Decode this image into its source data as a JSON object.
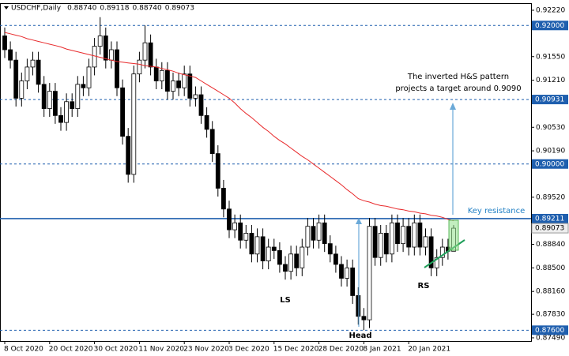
{
  "chart_data": {
    "type": "candlestick",
    "title": "USDCHF,Daily",
    "header_values": [
      {
        "value": 0.8874,
        "label": "0.88740"
      },
      {
        "value": 0.89118,
        "label": "0.89118"
      },
      {
        "value": 0.8874,
        "label": "0.88740"
      },
      {
        "value": 0.89073,
        "label": "0.89073"
      }
    ],
    "categories": [
      "8 Oct 2020",
      null,
      null,
      null,
      null,
      null,
      null,
      null,
      "20 Oct 2020",
      null,
      null,
      null,
      null,
      null,
      null,
      null,
      "30 Oct 2020",
      null,
      null,
      null,
      null,
      null,
      null,
      null,
      "11 Nov 2020",
      null,
      null,
      null,
      null,
      null,
      null,
      null,
      "23 Nov 2020",
      null,
      null,
      null,
      null,
      null,
      null,
      null,
      "3 Dec 2020",
      null,
      null,
      null,
      null,
      null,
      null,
      null,
      "15 Dec 2020",
      null,
      null,
      null,
      null,
      null,
      null,
      null,
      "28 Dec 2020",
      null,
      null,
      null,
      null,
      null,
      null,
      null,
      "8 Jan 2021",
      null,
      null,
      null,
      null,
      null,
      null,
      null,
      "20 Jan 2021",
      null,
      null,
      null,
      null,
      null,
      null,
      null,
      null
    ],
    "open": [
      0.9185,
      0.9165,
      0.915,
      0.9095,
      0.912,
      0.914,
      0.915,
      0.9115,
      0.908,
      0.9105,
      0.907,
      0.906,
      0.909,
      0.908,
      0.9115,
      0.911,
      0.914,
      0.917,
      0.9185,
      0.915,
      0.9165,
      0.911,
      0.904,
      0.8985,
      0.913,
      0.915,
      0.9175,
      0.914,
      0.912,
      0.9135,
      0.9105,
      0.912,
      0.911,
      0.913,
      0.9095,
      0.91,
      0.907,
      0.905,
      0.9015,
      0.8965,
      0.8935,
      0.8905,
      0.8915,
      0.889,
      0.89,
      0.887,
      0.8895,
      0.886,
      0.888,
      0.8875,
      0.8855,
      0.8845,
      0.887,
      0.885,
      0.888,
      0.891,
      0.889,
      0.8915,
      0.8885,
      0.887,
      0.8855,
      0.8835,
      0.885,
      0.881,
      0.878,
      0.8775,
      0.891,
      0.8865,
      0.89,
      0.887,
      0.8915,
      0.8885,
      0.891,
      0.888,
      0.8915,
      0.888,
      0.8895,
      0.885,
      0.8865,
      0.888,
      0.8874
    ],
    "high": [
      0.9197,
      0.9177,
      0.9162,
      0.9132,
      0.9152,
      0.9162,
      0.9162,
      0.9127,
      0.9117,
      0.9117,
      0.9082,
      0.9102,
      0.9102,
      0.9127,
      0.9127,
      0.9152,
      0.9182,
      0.9212,
      0.9197,
      0.9177,
      0.9177,
      0.9122,
      0.9052,
      0.9142,
      0.9162,
      0.92,
      0.9187,
      0.9152,
      0.9147,
      0.9147,
      0.9132,
      0.9132,
      0.9142,
      0.9142,
      0.9112,
      0.9112,
      0.9082,
      0.9062,
      0.9027,
      0.8977,
      0.8947,
      0.8927,
      0.8927,
      0.8912,
      0.8912,
      0.8907,
      0.8907,
      0.8892,
      0.8892,
      0.8887,
      0.8867,
      0.8882,
      0.8882,
      0.8892,
      0.8922,
      0.8922,
      0.8927,
      0.8927,
      0.8897,
      0.8882,
      0.8867,
      0.8862,
      0.8862,
      0.8822,
      0.8792,
      0.8922,
      0.8922,
      0.8912,
      0.8912,
      0.8927,
      0.8927,
      0.8922,
      0.8922,
      0.8927,
      0.8927,
      0.8907,
      0.8907,
      0.8877,
      0.8892,
      0.8892,
      0.89118
    ],
    "low": [
      0.9153,
      0.9138,
      0.9083,
      0.9083,
      0.9108,
      0.9128,
      0.9103,
      0.9068,
      0.9068,
      0.9058,
      0.9048,
      0.9048,
      0.9068,
      0.9068,
      0.9098,
      0.9098,
      0.9128,
      0.9158,
      0.9138,
      0.9138,
      0.9098,
      0.9028,
      0.8973,
      0.8973,
      0.9118,
      0.9138,
      0.9128,
      0.9108,
      0.9108,
      0.9093,
      0.9093,
      0.9098,
      0.9098,
      0.9083,
      0.9083,
      0.9058,
      0.9038,
      0.9003,
      0.8953,
      0.8923,
      0.8893,
      0.8893,
      0.8878,
      0.8878,
      0.8858,
      0.8858,
      0.8848,
      0.8848,
      0.8863,
      0.8843,
      0.8833,
      0.8833,
      0.8838,
      0.8838,
      0.8868,
      0.8878,
      0.8878,
      0.8873,
      0.8858,
      0.8843,
      0.8823,
      0.8823,
      0.8798,
      0.8768,
      0.876,
      0.8763,
      0.8853,
      0.8853,
      0.8858,
      0.8858,
      0.8873,
      0.8873,
      0.8868,
      0.8868,
      0.8868,
      0.8868,
      0.8838,
      0.8838,
      0.8853,
      0.8862,
      0.8874
    ],
    "close": [
      0.9165,
      0.915,
      0.9095,
      0.912,
      0.914,
      0.915,
      0.9115,
      0.908,
      0.9105,
      0.907,
      0.906,
      0.909,
      0.908,
      0.9115,
      0.911,
      0.914,
      0.917,
      0.9185,
      0.915,
      0.9165,
      0.911,
      0.904,
      0.8985,
      0.913,
      0.915,
      0.9175,
      0.914,
      0.912,
      0.9135,
      0.9105,
      0.912,
      0.911,
      0.913,
      0.9095,
      0.91,
      0.907,
      0.905,
      0.9015,
      0.8965,
      0.8935,
      0.8905,
      0.8915,
      0.889,
      0.89,
      0.887,
      0.8895,
      0.886,
      0.888,
      0.8875,
      0.8855,
      0.8845,
      0.887,
      0.885,
      0.888,
      0.891,
      0.889,
      0.8915,
      0.8885,
      0.887,
      0.8855,
      0.8835,
      0.885,
      0.881,
      0.878,
      0.8775,
      0.891,
      0.8865,
      0.89,
      0.887,
      0.8915,
      0.8885,
      0.891,
      0.888,
      0.8915,
      0.888,
      0.8895,
      0.885,
      0.8865,
      0.888,
      0.8874,
      0.89073
    ],
    "moving_average": {
      "color": "#e8292b",
      "values": [
        0.919,
        0.9188,
        0.9186,
        0.9184,
        0.9181,
        0.9179,
        0.9177,
        0.9175,
        0.9173,
        0.9171,
        0.9169,
        0.9166,
        0.9164,
        0.9162,
        0.916,
        0.9158,
        0.9156,
        0.9154,
        0.9152,
        0.915,
        0.9148,
        0.9147,
        0.9146,
        0.9145,
        0.9144,
        0.9142,
        0.9141,
        0.914,
        0.9138,
        0.9136,
        0.9134,
        0.9131,
        0.9129,
        0.9127,
        0.9125,
        0.912,
        0.9115,
        0.911,
        0.9105,
        0.91,
        0.9095,
        0.9088,
        0.908,
        0.9073,
        0.9067,
        0.906,
        0.9053,
        0.9047,
        0.904,
        0.9034,
        0.9029,
        0.9023,
        0.9017,
        0.9011,
        0.9006,
        0.9,
        0.8994,
        0.8988,
        0.8982,
        0.8976,
        0.897,
        0.8963,
        0.8957,
        0.895,
        0.8947,
        0.8945,
        0.8942,
        0.894,
        0.8939,
        0.8937,
        0.8935,
        0.8934,
        0.8932,
        0.8931,
        0.8929,
        0.8928,
        0.8926,
        0.8925,
        0.8923,
        0.892,
        0.8918
      ]
    },
    "ylim": [
      0.87444,
      0.92311
    ],
    "yticks": [
      {
        "value": 0.9222,
        "label": "0.92220"
      },
      {
        "value": 0.9155,
        "label": "0.91550"
      },
      {
        "value": 0.9121,
        "label": "0.91210"
      },
      {
        "value": 0.9053,
        "label": "0.90530"
      },
      {
        "value": 0.9019,
        "label": "0.90190"
      },
      {
        "value": 0.8952,
        "label": "0.89520"
      },
      {
        "value": 0.8884,
        "label": "0.88840"
      },
      {
        "value": 0.885,
        "label": "0.88500"
      },
      {
        "value": 0.8816,
        "label": "0.88160"
      },
      {
        "value": 0.8783,
        "label": "0.87830"
      },
      {
        "value": 0.8749,
        "label": "0.87490"
      }
    ],
    "levels": [
      {
        "value": 0.92,
        "label": "0.92000",
        "style": "dashed"
      },
      {
        "value": 0.90931,
        "label": "0.90931",
        "style": "dashed"
      },
      {
        "value": 0.9,
        "label": "0.90000",
        "style": "dashed"
      },
      {
        "value": 0.89211,
        "label": "0.89211",
        "style": "solid"
      },
      {
        "value": 0.876,
        "label": "0.87600",
        "style": "dashed"
      }
    ],
    "level_color": "#1f5fae",
    "last_price": 0.89073,
    "annotations": {
      "target": [
        "The inverted H&S pattern",
        "projects a target around 0.9090"
      ],
      "resistance": "Key resistance",
      "ls": "LS",
      "head": "Head",
      "rs": "RS"
    }
  }
}
